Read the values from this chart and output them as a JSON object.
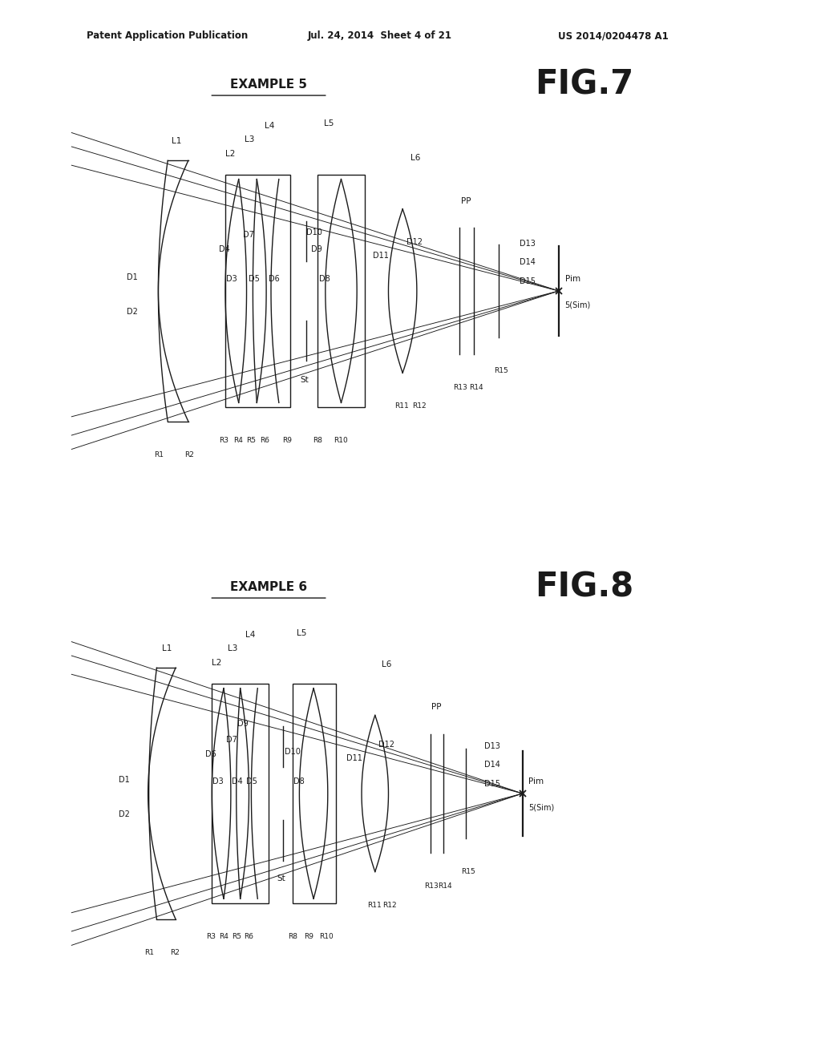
{
  "background_color": "#ffffff",
  "header_text": "Patent Application Publication",
  "header_date": "Jul. 24, 2014  Sheet 4 of 21",
  "header_patent": "US 2014/0204478 A1",
  "fig1_title": "EXAMPLE 5",
  "fig1_label": "FIG.7",
  "fig2_title": "EXAMPLE 6",
  "fig2_label": "FIG.8",
  "text_color": "#1a1a1a",
  "line_color": "#1a1a1a",
  "lw": 1.0,
  "lw_thin": 0.65
}
